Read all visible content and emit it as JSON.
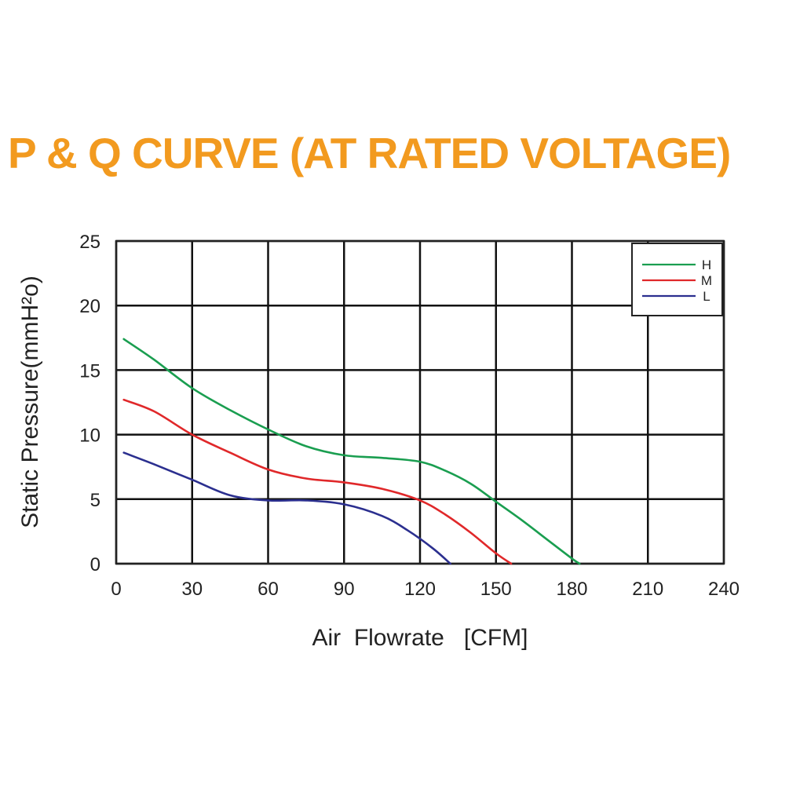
{
  "chart_data": {
    "type": "line",
    "title": "P & Q CURVE (AT RATED VOLTAGE)",
    "xlabel": "Air  Flowrate   [CFM]",
    "ylabel": "Static Pressure(mmH²o)",
    "xlim": [
      0,
      240
    ],
    "ylim": [
      0,
      25
    ],
    "xticks": [
      "0",
      "30",
      "60",
      "90",
      "120",
      "150",
      "180",
      "210",
      "240"
    ],
    "yticks": [
      "0",
      "5",
      "10",
      "15",
      "20",
      "25"
    ],
    "grid": true,
    "legend_position": "top-right",
    "series": [
      {
        "name": "H",
        "color": "#1a9e50",
        "x": [
          3,
          15,
          30,
          45,
          60,
          75,
          90,
          105,
          120,
          130,
          140,
          150,
          160,
          170,
          180,
          183
        ],
        "y": [
          17.4,
          15.8,
          13.6,
          11.9,
          10.4,
          9.1,
          8.4,
          8.2,
          7.9,
          7.2,
          6.2,
          4.8,
          3.4,
          1.9,
          0.4,
          0
        ]
      },
      {
        "name": "M",
        "color": "#e0282a",
        "x": [
          3,
          15,
          30,
          45,
          60,
          75,
          90,
          105,
          120,
          130,
          140,
          150,
          156
        ],
        "y": [
          12.7,
          11.8,
          10.0,
          8.6,
          7.3,
          6.6,
          6.3,
          5.8,
          4.9,
          3.8,
          2.4,
          0.8,
          0
        ]
      },
      {
        "name": "L",
        "color": "#2b2f8f",
        "x": [
          3,
          15,
          30,
          45,
          60,
          75,
          90,
          105,
          115,
          125,
          132
        ],
        "y": [
          8.6,
          7.7,
          6.5,
          5.3,
          4.9,
          4.9,
          4.6,
          3.7,
          2.6,
          1.2,
          0
        ]
      }
    ]
  },
  "colors": {
    "title": "#f29a1f",
    "grid": "#111111",
    "frame": "#222222"
  }
}
